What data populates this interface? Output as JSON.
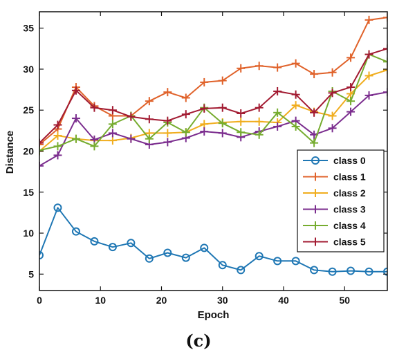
{
  "caption": "(c)",
  "chart_data": {
    "type": "line",
    "xlabel": "Epoch",
    "ylabel": "Distance",
    "xlim": [
      0,
      57
    ],
    "ylim": [
      3,
      37
    ],
    "xticks": [
      0,
      10,
      20,
      30,
      40,
      50
    ],
    "yticks": [
      5,
      10,
      15,
      20,
      25,
      30,
      35
    ],
    "grid": false,
    "legend": "right",
    "x": [
      0,
      3,
      6,
      9,
      12,
      15,
      18,
      21,
      24,
      27,
      30,
      33,
      36,
      39,
      42,
      45,
      48,
      51,
      54,
      57
    ],
    "series": [
      {
        "name": "class 0",
        "color": "#1f77b4",
        "marker": "circle",
        "values": [
          7.3,
          13.1,
          10.2,
          9.0,
          8.3,
          8.8,
          6.9,
          7.6,
          7.0,
          8.2,
          6.1,
          5.5,
          7.2,
          6.6,
          6.6,
          5.5,
          5.3,
          5.4,
          5.3,
          5.3
        ]
      },
      {
        "name": "class 1",
        "color": "#e0622a",
        "marker": "plus",
        "values": [
          20.8,
          22.7,
          27.8,
          25.5,
          24.3,
          24.3,
          26.1,
          27.2,
          26.5,
          28.4,
          28.6,
          30.1,
          30.4,
          30.2,
          30.7,
          29.4,
          29.6,
          31.4,
          36.0,
          36.3
        ]
      },
      {
        "name": "class 2",
        "color": "#f0ad1e",
        "marker": "plus",
        "values": [
          20.0,
          21.9,
          21.5,
          21.3,
          21.3,
          21.6,
          22.2,
          22.2,
          22.3,
          23.3,
          23.5,
          23.6,
          23.6,
          23.5,
          25.6,
          24.8,
          24.3,
          27.0,
          29.2,
          29.9
        ]
      },
      {
        "name": "class 3",
        "color": "#7b2d8e",
        "marker": "plus",
        "values": [
          18.2,
          19.5,
          24.0,
          21.4,
          22.2,
          21.5,
          20.8,
          21.1,
          21.6,
          22.4,
          22.2,
          21.7,
          22.4,
          23.0,
          23.7,
          22.0,
          22.8,
          24.8,
          26.8,
          27.2
        ]
      },
      {
        "name": "class 4",
        "color": "#76ac2f",
        "marker": "plus",
        "values": [
          20.1,
          20.6,
          21.5,
          20.6,
          23.3,
          24.3,
          21.5,
          23.5,
          22.3,
          25.3,
          23.4,
          22.3,
          22.0,
          24.7,
          23.0,
          21.0,
          27.3,
          26.1,
          31.8,
          30.9
        ]
      },
      {
        "name": "class 5",
        "color": "#a21a31",
        "marker": "plus",
        "values": [
          21.0,
          23.2,
          27.4,
          25.3,
          25.0,
          24.2,
          23.9,
          23.7,
          24.5,
          25.2,
          25.3,
          24.6,
          25.3,
          27.3,
          26.9,
          24.7,
          27.1,
          27.8,
          31.8,
          32.5
        ]
      }
    ]
  }
}
